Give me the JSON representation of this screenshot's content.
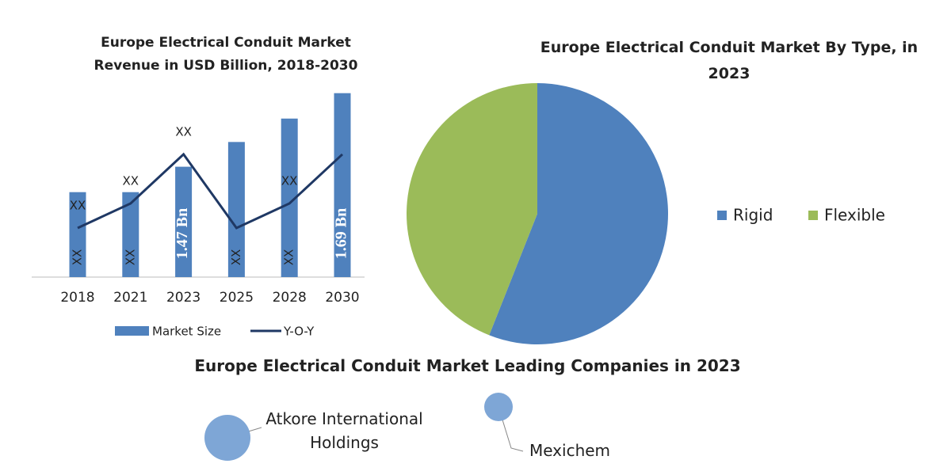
{
  "chart_data": [
    {
      "type": "bar",
      "title": "Europe Electrical Conduit Market Revenue in USD Billion, 2018-2030",
      "categories": [
        "2018",
        "2021",
        "2023",
        "2025",
        "2028",
        "2030"
      ],
      "series": [
        {
          "name": "Market Size",
          "color": "#4f81bd",
          "values": [
            1.394,
            1.394,
            1.47,
            1.544,
            1.614,
            1.69
          ],
          "value_labels": [
            "XX",
            "XX",
            "1.47 Bn",
            "XX",
            "XX",
            "1.69 Bn"
          ]
        },
        {
          "name": "Y-O-Y",
          "type": "line",
          "axis": "y2",
          "color": "#1f3864",
          "values": [
            2,
            3,
            5,
            2,
            3,
            5
          ],
          "value_labels": [
            "XX",
            "XX",
            "XX",
            null,
            "XX",
            null
          ]
        }
      ],
      "ylim": [
        1.14,
        1.72
      ],
      "y2lim": [
        0,
        7.9
      ]
    },
    {
      "type": "pie",
      "title": "Europe Electrical Conduit Market By Type, in 2023",
      "categories": [
        "Rigid",
        "Flexible"
      ],
      "values": [
        56,
        44
      ],
      "colors": [
        "#4f81bd",
        "#9bbb59"
      ]
    }
  ],
  "companies": {
    "title": "Europe Electrical Conduit Market Leading Companies in 2023",
    "names": [
      "Atkore International Holdings",
      "Mexichem"
    ]
  }
}
